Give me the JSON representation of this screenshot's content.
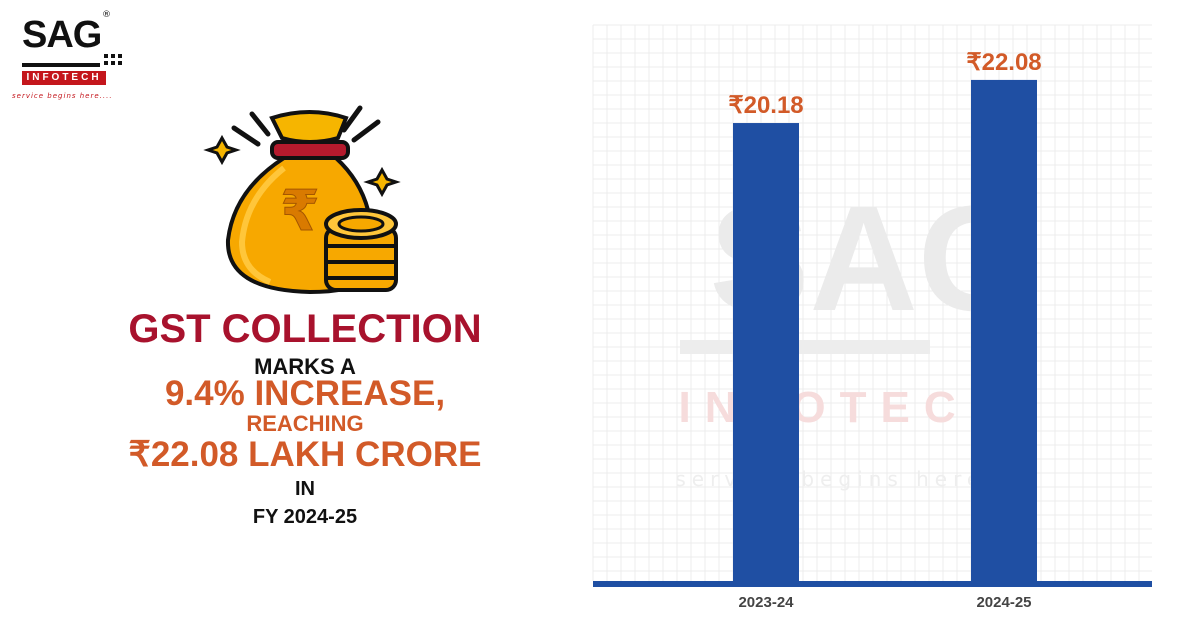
{
  "logo": {
    "brand": "SAG",
    "reg": "®",
    "sub": "INFOTECH",
    "tagline": "service begins here....",
    "brand_color": "#c4161c"
  },
  "illustration": {
    "icon": "money-bag-rupee-coins-icon",
    "symbol": "₹"
  },
  "headline": {
    "line1": "GST COLLECTION",
    "line2": "MARKS A",
    "line3": "9.4% INCREASE,",
    "line4": "REACHING",
    "line5": "₹22.08 LAKH CRORE",
    "line6": "IN",
    "line7": "FY 2024-25"
  },
  "colors": {
    "accent_red": "#a8122d",
    "accent_orange": "#d25a28",
    "bar_blue": "#1f4fa3",
    "text_dark": "#111111"
  },
  "chart_data": {
    "type": "bar",
    "categories": [
      "2023-24",
      "2024-25"
    ],
    "values": [
      20.18,
      22.08
    ],
    "value_labels": [
      "₹20.18",
      "₹22.08"
    ],
    "title": "",
    "xlabel": "",
    "ylabel": "",
    "ylim": [
      0,
      24.5
    ],
    "grid": true,
    "watermark": {
      "brand": "SAG",
      "sub": "INFOTECH",
      "tagline": "service begins here...."
    }
  }
}
